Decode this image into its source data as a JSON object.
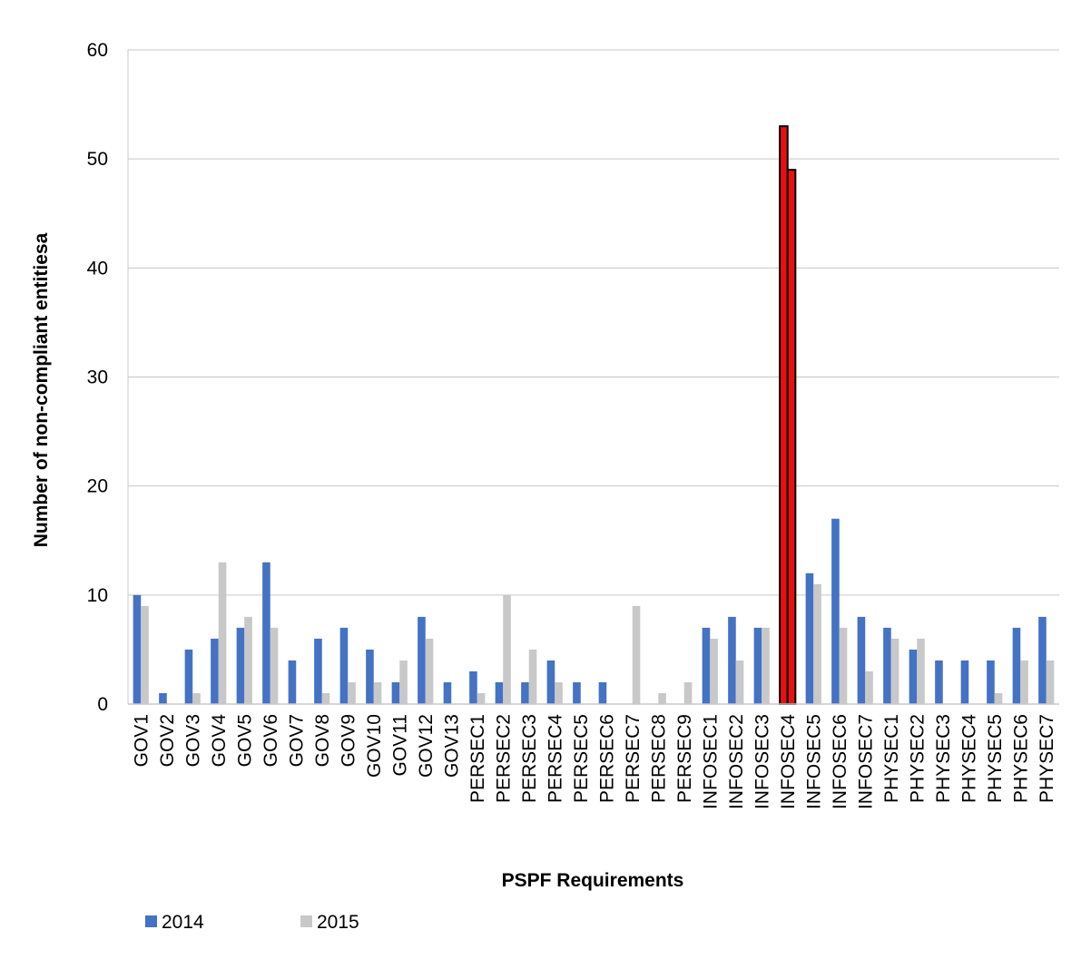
{
  "chart_data": {
    "type": "bar",
    "title": "",
    "xlabel": "PSPF Requirements",
    "ylabel": "Number of non-compliant entitiesa",
    "ylim": [
      0,
      60
    ],
    "yticks": [
      0,
      10,
      20,
      30,
      40,
      50,
      60
    ],
    "grid": true,
    "legend_position": "bottom-left",
    "categories": [
      "GOV1",
      "GOV2",
      "GOV3",
      "GOV4",
      "GOV5",
      "GOV6",
      "GOV7",
      "GOV8",
      "GOV9",
      "GOV10",
      "GOV11",
      "GOV12",
      "GOV13",
      "PERSEC1",
      "PERSEC2",
      "PERSEC3",
      "PERSEC4",
      "PERSEC5",
      "PERSEC6",
      "PERSEC7",
      "PERSEC8",
      "PERSEC9",
      "INFOSEC1",
      "INFOSEC2",
      "INFOSEC3",
      "INFOSEC4",
      "INFOSEC5",
      "INFOSEC6",
      "INFOSEC7",
      "PHYSEC1",
      "PHYSEC2",
      "PHYSEC3",
      "PHYSEC4",
      "PHYSEC5",
      "PHYSEC6",
      "PHYSEC7"
    ],
    "highlight_category": "INFOSEC4",
    "highlight_color": "#e8110f",
    "series": [
      {
        "name": "2014",
        "color": "#4472c4",
        "values": [
          10,
          1,
          5,
          6,
          7,
          13,
          4,
          6,
          7,
          5,
          2,
          8,
          2,
          3,
          2,
          2,
          4,
          2,
          2,
          0,
          0,
          0,
          7,
          8,
          7,
          53,
          12,
          17,
          8,
          7,
          5,
          4,
          4,
          4,
          7,
          8
        ]
      },
      {
        "name": "2015",
        "color": "#c8c8c8",
        "values": [
          9,
          0,
          1,
          13,
          8,
          7,
          0,
          1,
          2,
          2,
          4,
          6,
          0,
          1,
          10,
          5,
          2,
          0,
          0,
          9,
          1,
          2,
          6,
          4,
          7,
          49,
          11,
          7,
          3,
          6,
          6,
          0,
          0,
          1,
          4,
          4
        ]
      }
    ]
  }
}
